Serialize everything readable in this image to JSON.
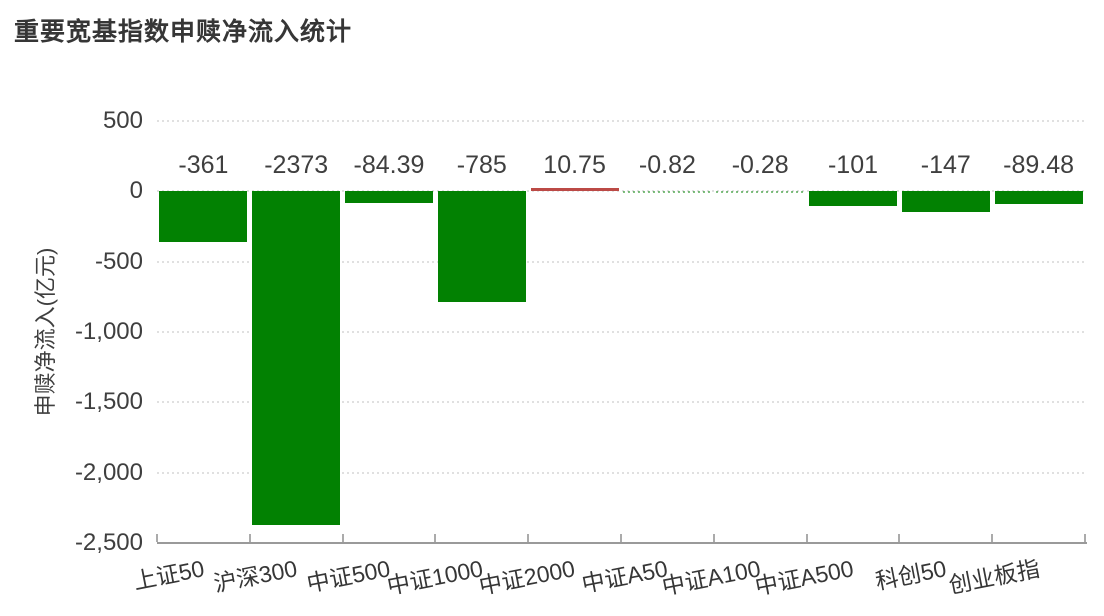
{
  "header": {
    "title": "重要宽基指数申赎净流入统计"
  },
  "chart_data": {
    "type": "bar",
    "title": "重要宽基指数申赎净流入统计",
    "xlabel": "",
    "ylabel": "申赎净流入(亿元)",
    "categories": [
      "上证50",
      "沪深300",
      "中证500",
      "中证1000",
      "中证2000",
      "中证A50",
      "中证A100",
      "中证A500",
      "科创50",
      "创业板指"
    ],
    "values": [
      -361,
      -2373,
      -84.39,
      -785,
      10.75,
      -0.82,
      -0.28,
      -101,
      -147,
      -89.48
    ],
    "value_labels": [
      "-361",
      "-2373",
      "-84.39",
      "-785",
      "10.75",
      "-0.82",
      "-0.28",
      "-101",
      "-147",
      "-89.48"
    ],
    "y_tick_labels": [
      "500",
      "0",
      "-500",
      "-1,000",
      "-1,500",
      "-2,000",
      "-2,500"
    ],
    "y_tick_values": [
      500,
      0,
      -500,
      -1000,
      -1500,
      -2000,
      -2500
    ],
    "ylim": [
      -2500,
      500
    ],
    "grid": "horizontal-dotted",
    "legend": "none",
    "colors": {
      "bar_negative": "#028102",
      "bar_positive": "#bc4a46",
      "gridline": "#e0e0e0",
      "axis": "#9a9a9a",
      "text": "#3f3f3f",
      "title": "#363636"
    }
  }
}
